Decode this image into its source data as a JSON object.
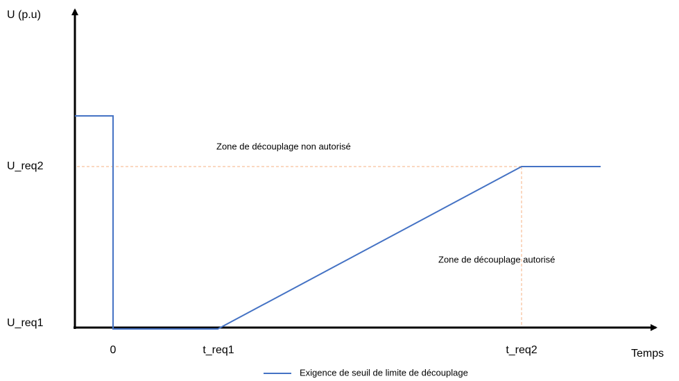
{
  "axes": {
    "y_label": "U (p.u)",
    "x_label": "Temps"
  },
  "y_ticks": [
    "U_req2",
    "U_req1"
  ],
  "x_ticks": [
    "0",
    "t_req1",
    "t_req2"
  ],
  "zones": [
    "Zone de découplage non autorisé",
    "Zone de découplage autorisé"
  ],
  "legend": {
    "label": "Exigence de seuil de limite de découplage"
  }
}
